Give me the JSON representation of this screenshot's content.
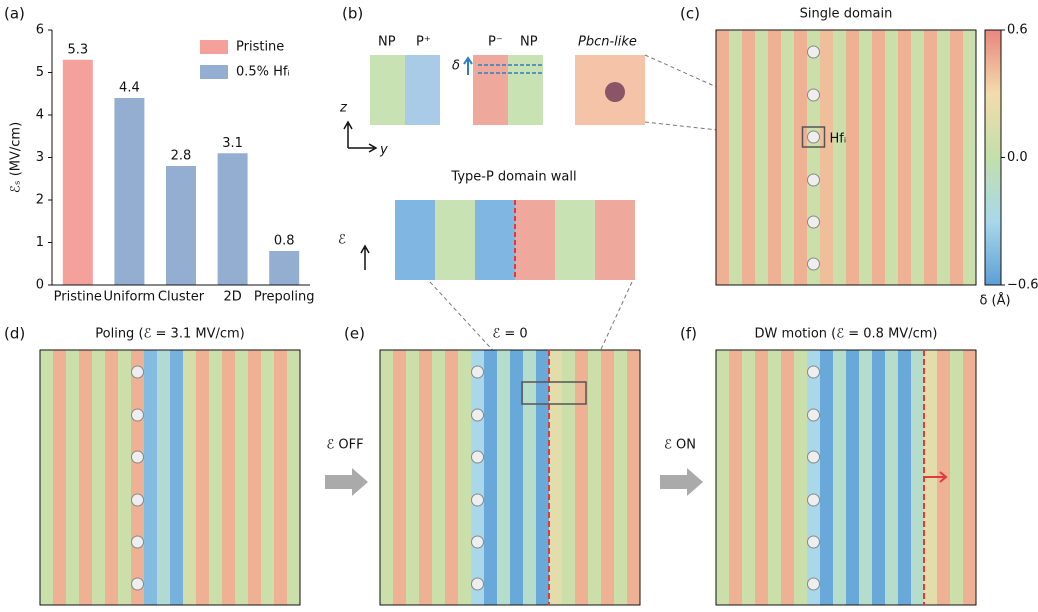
{
  "chart_data": [
    {
      "type": "bar",
      "panel": "(a)",
      "y_label": "ℰₛ (MV/cm)",
      "categories": [
        "Pristine",
        "Uniform",
        "Cluster",
        "2D",
        "Prepoling"
      ],
      "series": [
        {
          "name": "Pristine",
          "color": "#f4a09b",
          "values": [
            5.3,
            null,
            null,
            null,
            null
          ]
        },
        {
          "name": "0.5% Hfᵢ",
          "color": "#93aed1",
          "values": [
            null,
            4.4,
            2.8,
            3.1,
            0.8
          ]
        }
      ],
      "ylim": [
        0,
        6
      ],
      "yticks": [
        0,
        1,
        2,
        3,
        4,
        5,
        6
      ],
      "legend": "upper right"
    },
    {
      "type": "heatmap",
      "panel": "(c)",
      "title": "Single domain",
      "column_values": [
        0.45,
        0.05,
        0.45,
        0.05,
        0.45,
        0.05,
        0.45,
        0.05,
        0.4,
        0.05,
        0.45,
        0.05,
        0.45,
        0.05,
        0.45,
        0.05,
        0.45,
        0.05,
        0.45,
        0.05
      ],
      "annotation": "Hfᵢ",
      "colorbar": {
        "label": "δ (Å)",
        "lim": [
          -0.6,
          0.6
        ],
        "ticks": [
          {
            "value": 0.6,
            "label": "0.6"
          },
          {
            "value": 0,
            "label": "0.0"
          },
          {
            "value": -0.6,
            "label": "−0.6"
          }
        ],
        "colors": [
          "#5c9fd6",
          "#a9d8ea",
          "#c3dfab",
          "#f3dcab",
          "#e8867e"
        ]
      }
    },
    {
      "type": "heatmap",
      "panel": "(d)",
      "title": "Poling (ℰ = 3.1 MV/cm)",
      "column_values": [
        0.05,
        0.45,
        0.05,
        0.45,
        0.05,
        0.45,
        0.05,
        0.45,
        -0.45,
        -0.2,
        -0.5,
        0.1,
        0.45,
        0.05,
        0.45,
        0.05,
        0.45,
        0.05,
        0.45,
        0.05
      ]
    },
    {
      "type": "heatmap",
      "panel": "(e)",
      "title": "ℰ = 0",
      "column_values": [
        0.05,
        0.45,
        0.05,
        0.45,
        0.05,
        0.45,
        0.05,
        -0.3,
        -0.55,
        -0.15,
        -0.55,
        -0.15,
        -0.55,
        0.2,
        0.05,
        0.45,
        0.05,
        0.45,
        0.05,
        0.45
      ]
    },
    {
      "type": "heatmap",
      "panel": "(f)",
      "title": "DW motion (ℰ = 0.8 MV/cm)",
      "column_values": [
        0.05,
        0.45,
        0.05,
        0.45,
        0.05,
        0.45,
        0.05,
        -0.3,
        -0.55,
        -0.15,
        -0.55,
        -0.15,
        -0.55,
        -0.15,
        -0.55,
        -0.15,
        0.2,
        0.45,
        0.05,
        0.45
      ]
    }
  ],
  "structures": {
    "panel": "(b)",
    "np1": "NP",
    "p_plus": "P⁺",
    "p_minus": "P⁻",
    "np2": "NP",
    "pbcn": "Pbcn-like",
    "delta": "δ",
    "z": "z",
    "y": "y",
    "wall_title": "Type-P domain wall",
    "field": "ℰ"
  },
  "arrows": {
    "off": "ℰ OFF",
    "on": "ℰ ON"
  }
}
